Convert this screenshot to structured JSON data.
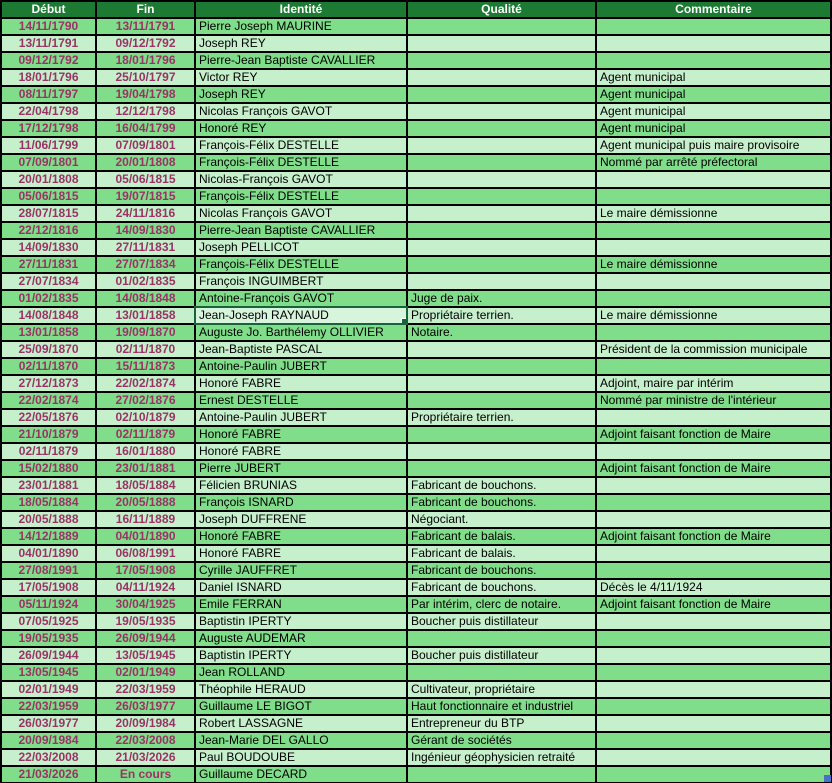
{
  "colors": {
    "header_bg": "#1d7a32",
    "header_text": "#ffffff",
    "row_odd_bg": "#80dd8a",
    "row_even_bg": "#c6efcc",
    "date_text": "#993366",
    "body_text": "#000000",
    "grid_line": "#000000",
    "selection_border": "#17633b",
    "selected_cell_bg": "#d7f5dc",
    "corner_marker": "#4a6fc9"
  },
  "table": {
    "columns": [
      {
        "key": "debut",
        "label": "Début"
      },
      {
        "key": "fin",
        "label": "Fin"
      },
      {
        "key": "identite",
        "label": "Identité"
      },
      {
        "key": "qualite",
        "label": "Qualité"
      },
      {
        "key": "commentaire",
        "label": "Commentaire"
      }
    ],
    "selected_cell": {
      "row_index": 18,
      "column": "identite",
      "value": "Jean-Joseph RAYNAUD"
    },
    "rows": [
      {
        "debut": "14/11/1790",
        "fin": "13/11/1791",
        "identite": "Pierre Joseph MAURINE",
        "qualite": "",
        "commentaire": ""
      },
      {
        "debut": "13/11/1791",
        "fin": "09/12/1792",
        "identite": "Joseph REY",
        "qualite": "",
        "commentaire": ""
      },
      {
        "debut": "09/12/1792",
        "fin": "18/01/1796",
        "identite": "Pierre-Jean Baptiste CAVALLIER",
        "qualite": "",
        "commentaire": ""
      },
      {
        "debut": "18/01/1796",
        "fin": "25/10/1797",
        "identite": "Victor REY",
        "qualite": "",
        "commentaire": "Agent municipal"
      },
      {
        "debut": "08/11/1797",
        "fin": "19/04/1798",
        "identite": "Joseph REY",
        "qualite": "",
        "commentaire": "Agent municipal"
      },
      {
        "debut": "22/04/1798",
        "fin": "12/12/1798",
        "identite": "Nicolas François GAVOT",
        "qualite": "",
        "commentaire": "Agent municipal"
      },
      {
        "debut": "17/12/1798",
        "fin": "16/04/1799",
        "identite": "Honoré REY",
        "qualite": "",
        "commentaire": "Agent municipal"
      },
      {
        "debut": "11/06/1799",
        "fin": "07/09/1801",
        "identite": "François-Félix DESTELLE",
        "qualite": "",
        "commentaire": "Agent municipal puis maire provisoire"
      },
      {
        "debut": "07/09/1801",
        "fin": "20/01/1808",
        "identite": "François-Félix DESTELLE",
        "qualite": "",
        "commentaire": "Nommé par arrêté préfectoral"
      },
      {
        "debut": "20/01/1808",
        "fin": "05/06/1815",
        "identite": "Nicolas-François GAVOT",
        "qualite": "",
        "commentaire": ""
      },
      {
        "debut": "05/06/1815",
        "fin": "19/07/1815",
        "identite": "François-Félix DESTELLE",
        "qualite": "",
        "commentaire": ""
      },
      {
        "debut": "28/07/1815",
        "fin": "24/11/1816",
        "identite": "Nicolas François GAVOT",
        "qualite": "",
        "commentaire": "Le maire démissionne"
      },
      {
        "debut": "22/12/1816",
        "fin": "14/09/1830",
        "identite": "Pierre-Jean Baptiste CAVALLIER",
        "qualite": "",
        "commentaire": ""
      },
      {
        "debut": "14/09/1830",
        "fin": "27/11/1831",
        "identite": "Joseph PELLICOT",
        "qualite": "",
        "commentaire": ""
      },
      {
        "debut": "27/11/1831",
        "fin": "27/07/1834",
        "identite": "François-Félix DESTELLE",
        "qualite": "",
        "commentaire": "Le maire démissionne"
      },
      {
        "debut": "27/07/1834",
        "fin": "01/02/1835",
        "identite": "François INGUIMBERT",
        "qualite": "",
        "commentaire": ""
      },
      {
        "debut": "01/02/1835",
        "fin": "14/08/1848",
        "identite": "Antoine-François GAVOT",
        "qualite": "Juge de paix.",
        "commentaire": ""
      },
      {
        "debut": "14/08/1848",
        "fin": "13/01/1858",
        "identite": "Jean-Joseph RAYNAUD",
        "qualite": "Propriétaire terrien.",
        "commentaire": "Le maire démissionne"
      },
      {
        "debut": "13/01/1858",
        "fin": "19/09/1870",
        "identite": "Auguste Jo. Barthélemy OLLIVIER",
        "qualite": "Notaire.",
        "commentaire": ""
      },
      {
        "debut": "25/09/1870",
        "fin": "02/11/1870",
        "identite": "Jean-Baptiste PASCAL",
        "qualite": "",
        "commentaire": "Président de la commission municipale"
      },
      {
        "debut": "02/11/1870",
        "fin": "15/11/1873",
        "identite": "Antoine-Paulin JUBERT",
        "qualite": "",
        "commentaire": ""
      },
      {
        "debut": "27/12/1873",
        "fin": "22/02/1874",
        "identite": "Honoré FABRE",
        "qualite": "",
        "commentaire": "Adjoint, maire par intérim"
      },
      {
        "debut": "22/02/1874",
        "fin": "27/02/1876",
        "identite": "Ernest DESTELLE",
        "qualite": "",
        "commentaire": "Nommé par ministre de l'intérieur"
      },
      {
        "debut": "22/05/1876",
        "fin": "02/10/1879",
        "identite": "Antoine-Paulin JUBERT",
        "qualite": "Propriétaire terrien.",
        "commentaire": ""
      },
      {
        "debut": "21/10/1879",
        "fin": "02/11/1879",
        "identite": "Honoré FABRE",
        "qualite": "",
        "commentaire": "Adjoint faisant fonction de Maire"
      },
      {
        "debut": "02/11/1879",
        "fin": "16/01/1880",
        "identite": "Honoré FABRE",
        "qualite": "",
        "commentaire": ""
      },
      {
        "debut": "15/02/1880",
        "fin": "23/01/1881",
        "identite": "Pierre JUBERT",
        "qualite": "",
        "commentaire": "Adjoint faisant fonction de Maire"
      },
      {
        "debut": "23/01/1881",
        "fin": "18/05/1884",
        "identite": "Félicien BRUNIAS",
        "qualite": "Fabricant de bouchons.",
        "commentaire": ""
      },
      {
        "debut": "18/05/1884",
        "fin": "20/05/1888",
        "identite": "François ISNARD",
        "qualite": "Fabricant de bouchons.",
        "commentaire": ""
      },
      {
        "debut": "20/05/1888",
        "fin": "16/11/1889",
        "identite": "Joseph DUFFRENE",
        "qualite": "Négociant.",
        "commentaire": ""
      },
      {
        "debut": "14/12/1889",
        "fin": "04/01/1890",
        "identite": "Honoré FABRE",
        "qualite": "Fabricant de balais.",
        "commentaire": "Adjoint faisant fonction de Maire"
      },
      {
        "debut": "04/01/1890",
        "fin": "06/08/1991",
        "identite": "Honoré FABRE",
        "qualite": "Fabricant de balais.",
        "commentaire": ""
      },
      {
        "debut": "27/08/1991",
        "fin": "17/05/1908",
        "identite": "Cyrille JAUFFRET",
        "qualite": "Fabricant de bouchons.",
        "commentaire": ""
      },
      {
        "debut": "17/05/1908",
        "fin": "04/11/1924",
        "identite": "Daniel ISNARD",
        "qualite": "Fabricant de bouchons.",
        "commentaire": "Décès le 4/11/1924"
      },
      {
        "debut": "05/11/1924",
        "fin": "30/04/1925",
        "identite": "Emile FERRAN",
        "qualite": "Par intérim, clerc de notaire.",
        "commentaire": "Adjoint faisant fonction de Maire"
      },
      {
        "debut": "07/05/1925",
        "fin": "19/05/1935",
        "identite": "Baptistin IPERTY",
        "qualite": "Boucher puis distillateur",
        "commentaire": ""
      },
      {
        "debut": "19/05/1935",
        "fin": "26/09/1944",
        "identite": "Auguste AUDEMAR",
        "qualite": "",
        "commentaire": ""
      },
      {
        "debut": "26/09/1944",
        "fin": "13/05/1945",
        "identite": "Baptistin IPERTY",
        "qualite": "Boucher puis distillateur",
        "commentaire": ""
      },
      {
        "debut": "13/05/1945",
        "fin": "02/01/1949",
        "identite": "Jean ROLLAND",
        "qualite": "",
        "commentaire": ""
      },
      {
        "debut": "02/01/1949",
        "fin": "22/03/1959",
        "identite": "Théophile HERAUD",
        "qualite": "Cultivateur, propriétaire",
        "commentaire": ""
      },
      {
        "debut": "22/03/1959",
        "fin": "26/03/1977",
        "identite": "Guillaume LE BIGOT",
        "qualite": "Haut fonctionnaire et industriel",
        "commentaire": ""
      },
      {
        "debut": "26/03/1977",
        "fin": "20/09/1984",
        "identite": "Robert LASSAGNE",
        "qualite": "Entrepreneur du BTP",
        "commentaire": ""
      },
      {
        "debut": "20/09/1984",
        "fin": "22/03/2008",
        "identite": "Jean-Marie DEL GALLO",
        "qualite": "Gérant de sociétés",
        "commentaire": ""
      },
      {
        "debut": "22/03/2008",
        "fin": "21/03/2026",
        "identite": "Paul BOUDOUBE",
        "qualite": "Ingénieur géophysicien retraité",
        "commentaire": ""
      },
      {
        "debut": "21/03/2026",
        "fin": "En cours",
        "identite": "Guillaume DECARD",
        "qualite": "",
        "commentaire": ""
      }
    ]
  }
}
